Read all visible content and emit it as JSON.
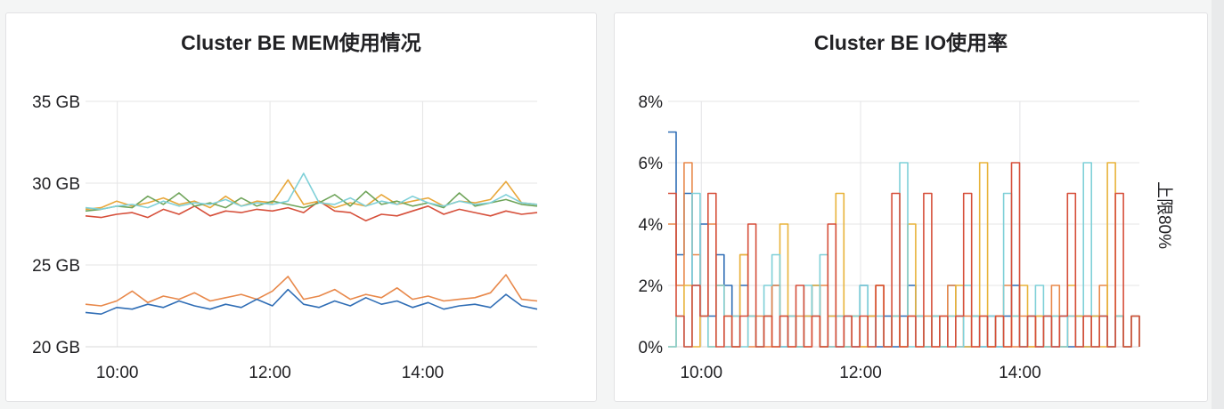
{
  "chart_data": [
    {
      "type": "line",
      "title": "Cluster BE MEM使用情况",
      "ylabel": "",
      "xlabel": "",
      "y_ticks": [
        "20 GB",
        "25 GB",
        "30 GB",
        "35 GB"
      ],
      "x_ticks": [
        "10:00",
        "12:00",
        "14:00"
      ],
      "ylim": [
        20,
        35
      ],
      "x_range": [
        "09:35",
        "15:30"
      ],
      "grid": true,
      "legend": "none",
      "series": [
        {
          "color": "#d64f3a",
          "values": [
            28.0,
            27.9,
            28.1,
            28.2,
            27.9,
            28.4,
            28.1,
            28.6,
            28.0,
            28.3,
            28.2,
            28.4,
            28.3,
            28.5,
            28.2,
            28.9,
            28.3,
            28.2,
            27.7,
            28.1,
            28.0,
            28.3,
            28.6,
            28.1,
            28.4,
            28.2,
            28.0,
            28.3,
            28.1,
            28.2
          ]
        },
        {
          "color": "#e8a73a",
          "values": [
            28.4,
            28.5,
            28.9,
            28.6,
            28.8,
            29.1,
            28.7,
            28.9,
            28.5,
            29.2,
            28.6,
            28.9,
            28.8,
            30.2,
            28.7,
            28.9,
            28.5,
            28.8,
            28.6,
            29.3,
            28.7,
            28.9,
            29.1,
            28.6,
            28.9,
            28.8,
            29.0,
            30.1,
            28.8,
            28.7
          ]
        },
        {
          "color": "#6fa45a",
          "values": [
            28.3,
            28.4,
            28.6,
            28.5,
            29.2,
            28.7,
            29.4,
            28.6,
            28.8,
            28.5,
            29.1,
            28.6,
            28.9,
            28.7,
            28.5,
            28.8,
            29.3,
            28.6,
            29.5,
            28.7,
            28.9,
            28.6,
            28.8,
            28.5,
            29.4,
            28.6,
            28.8,
            29.0,
            28.7,
            28.6
          ]
        },
        {
          "color": "#7fd0d8",
          "values": [
            28.5,
            28.4,
            28.6,
            28.7,
            28.5,
            28.9,
            28.6,
            28.8,
            28.7,
            29.0,
            28.6,
            28.8,
            28.7,
            28.9,
            30.6,
            28.8,
            28.7,
            29.1,
            28.6,
            28.9,
            28.7,
            29.2,
            28.8,
            28.6,
            28.9,
            28.7,
            28.8,
            29.3,
            28.8,
            28.7
          ]
        },
        {
          "color": "#e8884a",
          "values": [
            22.6,
            22.5,
            22.8,
            23.4,
            22.7,
            23.1,
            22.9,
            23.3,
            22.8,
            23.0,
            23.2,
            22.9,
            23.4,
            24.3,
            22.9,
            23.1,
            23.5,
            22.9,
            23.2,
            23.0,
            23.6,
            22.9,
            23.1,
            22.8,
            22.9,
            23.0,
            23.3,
            24.4,
            22.9,
            22.8
          ]
        },
        {
          "color": "#2f6db5",
          "values": [
            22.1,
            22.0,
            22.4,
            22.3,
            22.6,
            22.4,
            22.8,
            22.5,
            22.3,
            22.6,
            22.4,
            22.9,
            22.5,
            23.5,
            22.6,
            22.4,
            22.8,
            22.5,
            23.0,
            22.6,
            22.8,
            22.4,
            22.7,
            22.3,
            22.5,
            22.6,
            22.4,
            23.2,
            22.5,
            22.3
          ]
        }
      ]
    },
    {
      "type": "line",
      "title": "Cluster BE IO使用率",
      "ylabel": "上限80%",
      "xlabel": "",
      "y_ticks": [
        "0%",
        "2%",
        "4%",
        "6%",
        "8%"
      ],
      "x_ticks": [
        "10:00",
        "12:00",
        "14:00"
      ],
      "ylim": [
        0,
        8
      ],
      "x_range": [
        "09:35",
        "15:30"
      ],
      "grid": true,
      "legend": "none",
      "series": [
        {
          "color": "#2f6db5",
          "values": [
            7,
            3,
            5,
            2,
            4,
            1,
            3,
            2,
            0,
            2,
            1,
            0,
            1,
            2,
            0,
            1,
            0,
            1,
            2,
            0,
            1,
            0,
            1,
            0,
            2,
            1,
            0,
            1,
            0,
            1,
            2,
            1,
            0,
            1,
            0,
            2,
            1,
            0,
            1,
            0,
            1,
            0,
            1,
            2,
            0,
            1,
            0,
            1,
            0,
            1,
            0,
            1,
            0,
            1,
            1,
            0,
            1,
            0,
            1,
            1
          ]
        },
        {
          "color": "#e8884a",
          "values": [
            4,
            2,
            6,
            3,
            1,
            4,
            2,
            0,
            1,
            3,
            0,
            1,
            0,
            2,
            1,
            0,
            1,
            0,
            1,
            2,
            0,
            1,
            0,
            1,
            0,
            1,
            2,
            0,
            1,
            0,
            1,
            0,
            1,
            0,
            1,
            2,
            0,
            1,
            0,
            1,
            0,
            1,
            2,
            0,
            1,
            0,
            1,
            0,
            2,
            0,
            1,
            0,
            1,
            0,
            2,
            0,
            1,
            0,
            1,
            0
          ]
        },
        {
          "color": "#e8b33a",
          "values": [
            0,
            1,
            2,
            0,
            1,
            0,
            2,
            1,
            0,
            3,
            1,
            0,
            1,
            0,
            4,
            1,
            0,
            1,
            2,
            0,
            1,
            5,
            0,
            1,
            0,
            1,
            2,
            0,
            1,
            0,
            4,
            1,
            0,
            1,
            0,
            1,
            2,
            0,
            1,
            6,
            0,
            1,
            0,
            1,
            2,
            0,
            1,
            0,
            1,
            0,
            2,
            1,
            0,
            1,
            0,
            6,
            1,
            0,
            1,
            0
          ]
        },
        {
          "color": "#7fd0d8",
          "values": [
            0,
            1,
            0,
            5,
            1,
            0,
            2,
            0,
            1,
            0,
            1,
            0,
            2,
            3,
            0,
            1,
            0,
            2,
            1,
            3,
            0,
            1,
            0,
            1,
            2,
            0,
            1,
            0,
            1,
            6,
            0,
            1,
            0,
            1,
            0,
            1,
            0,
            2,
            1,
            0,
            1,
            0,
            5,
            1,
            0,
            1,
            2,
            0,
            1,
            0,
            1,
            0,
            6,
            0,
            1,
            0,
            1,
            0,
            1,
            0
          ]
        },
        {
          "color": "#d64f3a",
          "values": [
            5,
            1,
            0,
            2,
            1,
            5,
            0,
            1,
            0,
            1,
            4,
            0,
            1,
            0,
            1,
            0,
            2,
            0,
            1,
            0,
            4,
            0,
            1,
            0,
            1,
            0,
            2,
            0,
            5,
            0,
            1,
            0,
            5,
            0,
            1,
            0,
            1,
            5,
            0,
            1,
            0,
            1,
            0,
            6,
            0,
            1,
            0,
            1,
            0,
            1,
            5,
            0,
            1,
            0,
            1,
            0,
            5,
            0,
            1,
            0
          ]
        }
      ]
    }
  ]
}
